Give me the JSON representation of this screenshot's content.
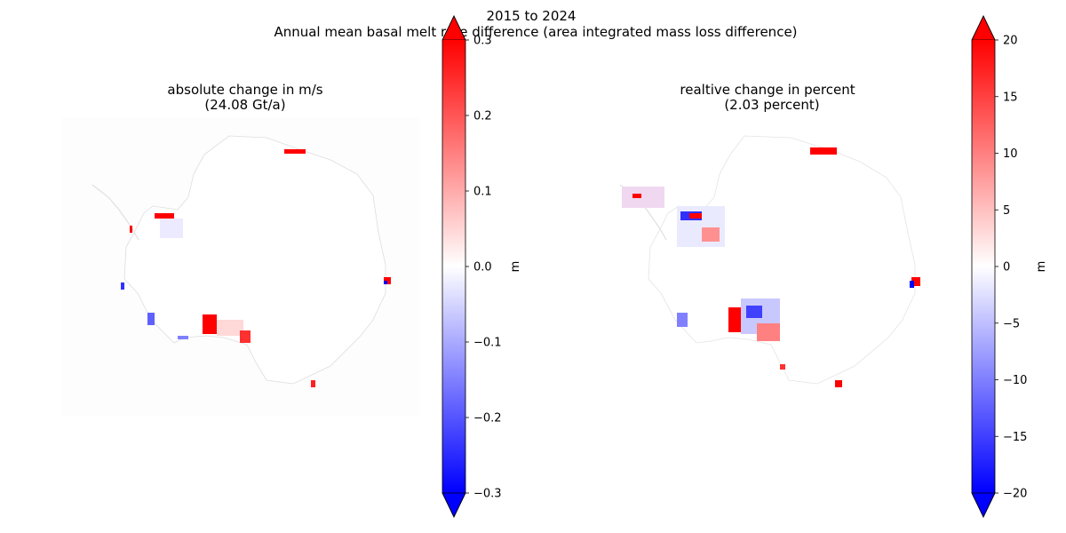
{
  "suptitle": [
    "2015 to 2024",
    "Annual mean basal melt rate difference (area integrated mass loss difference)"
  ],
  "chart_data": [
    {
      "type": "heatmap",
      "title": [
        "absolute change in m/s",
        "(24.08 Gt/a)"
      ],
      "colormap": "bwr",
      "colorbar_label": "m",
      "clim": [
        -0.3,
        0.3
      ],
      "colorbar_ticks": [
        -0.3,
        -0.2,
        -0.1,
        0.0,
        0.1,
        0.2,
        0.3
      ],
      "colorbar_tick_labels": [
        "−0.3",
        "−0.2",
        "−0.1",
        "0.0",
        "0.1",
        "0.2",
        "0.3"
      ],
      "colorbar_extend": "both",
      "axes": "off"
    },
    {
      "type": "heatmap",
      "title": [
        "realtive change in percent",
        "(2.03 percent)"
      ],
      "colormap": "bwr",
      "colorbar_label": "m",
      "clim": [
        -20,
        20
      ],
      "colorbar_ticks": [
        -20,
        -15,
        -10,
        -5,
        0,
        5,
        10,
        15,
        20
      ],
      "colorbar_tick_labels": [
        "−20",
        "−15",
        "−10",
        "−5",
        "0",
        "5",
        "10",
        "15",
        "20"
      ],
      "colorbar_extend": "both",
      "axes": "off"
    }
  ],
  "colors": {
    "low": "#0000ff",
    "mid": "#ffffff",
    "high": "#ff0000"
  }
}
